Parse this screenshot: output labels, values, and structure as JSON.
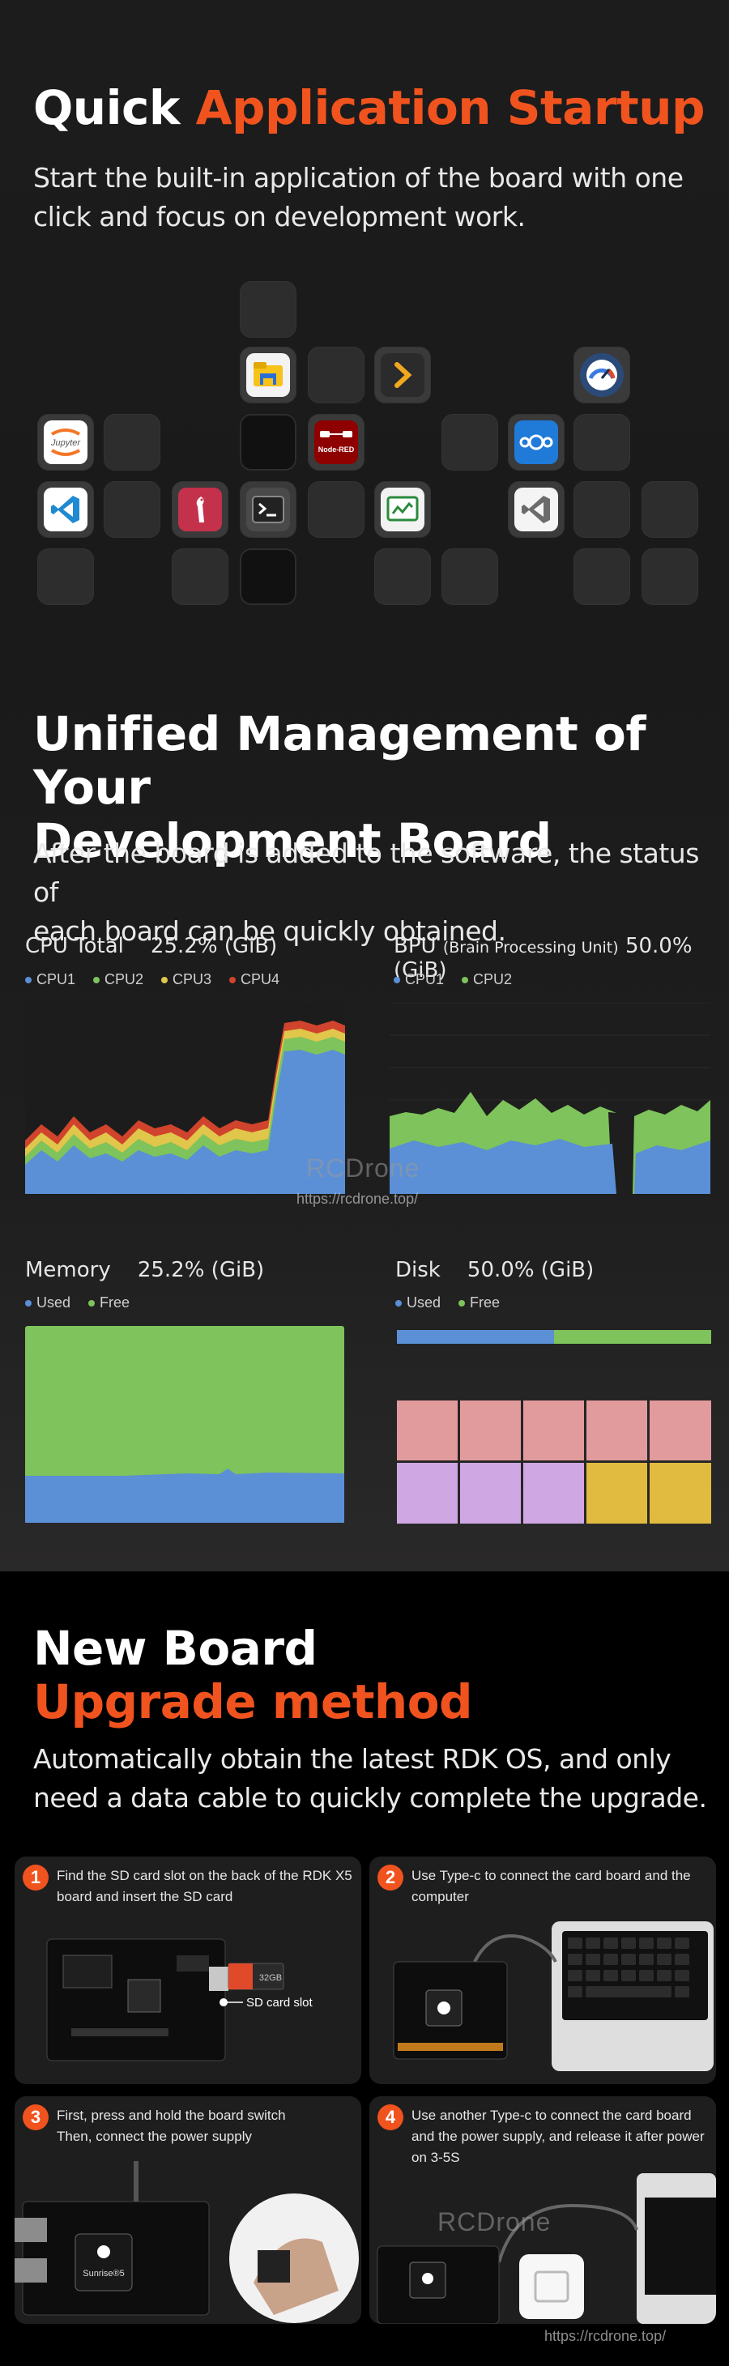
{
  "quick": {
    "title_white": "Quick",
    "title_accent": "Application Startup",
    "subtitle_line1": "Start the built-in application of the board with one",
    "subtitle_line2": "click and focus on development work.",
    "apps": [
      {
        "name": "file-manager",
        "label": ""
      },
      {
        "name": "terminal-chevron",
        "label": ""
      },
      {
        "name": "speedometer",
        "label": ""
      },
      {
        "name": "jupyter",
        "label": "Jupyter"
      },
      {
        "name": "node-red",
        "label": "Node-RED"
      },
      {
        "name": "nextcloud",
        "label": ""
      },
      {
        "name": "vscode",
        "label": ""
      },
      {
        "name": "raspberry-bird",
        "label": ""
      },
      {
        "name": "terminal",
        "label": ""
      },
      {
        "name": "system-monitor",
        "label": ""
      },
      {
        "name": "vscode-gray",
        "label": ""
      }
    ]
  },
  "unified": {
    "title_line1": "Unified Management of Your",
    "title_line2": "Development Board",
    "subtitle_line1": "After the board is added to the software, the status of",
    "subtitle_line2": "each board can be quickly obtained."
  },
  "cpu": {
    "title": "CPU Total",
    "value": "25.2% (GiB)",
    "legend": [
      "CPU1",
      "CPU2",
      "CPU3",
      "CPU4"
    ],
    "colors": [
      "#5b8fd6",
      "#7ec35b",
      "#e0c64a",
      "#d0432c"
    ]
  },
  "bpu": {
    "title": "BPU",
    "title_small": "(Brain Processing Unit)",
    "value": "50.0% (GiB)",
    "legend": [
      "CPU1",
      "CPU2"
    ],
    "colors": [
      "#5b8fd6",
      "#7ec35b"
    ]
  },
  "memory": {
    "title": "Memory",
    "value": "25.2% (GiB)",
    "legend": [
      "Used",
      "Free"
    ],
    "colors": [
      "#5b8fd6",
      "#7ec35b"
    ]
  },
  "disk": {
    "title": "Disk",
    "value": "50.0% (GiB)",
    "legend": [
      "Used",
      "Free"
    ],
    "colors": [
      "#5b8fd6",
      "#7ec35b"
    ],
    "used_fraction": 0.5
  },
  "watermark": {
    "brand": "RCDrone",
    "url": "https://rcdrone.top/"
  },
  "upgrade": {
    "title_white": "New Board",
    "title_accent": "Upgrade method",
    "subtitle_line1": "Automatically obtain the latest RDK OS, and only",
    "subtitle_line2": "need a data cable to quickly complete the upgrade.",
    "steps": [
      {
        "num": "1",
        "line1": "Find the SD card slot on the back of the RDK X5",
        "line2": "board and insert the SD card",
        "callout": "SD card slot",
        "card_label": "32GB"
      },
      {
        "num": "2",
        "line1": "Use Type-c to connect the card board and the",
        "line2": "computer"
      },
      {
        "num": "3",
        "line1": "First, press and hold the board switch",
        "line2": "Then, connect the power supply",
        "chip_label": "Sunrise®5"
      },
      {
        "num": "4",
        "line1": "Use another Type-c to connect the card board",
        "line2": "and the power supply, and release it after power",
        "line3": "on 3-5S"
      }
    ]
  }
}
